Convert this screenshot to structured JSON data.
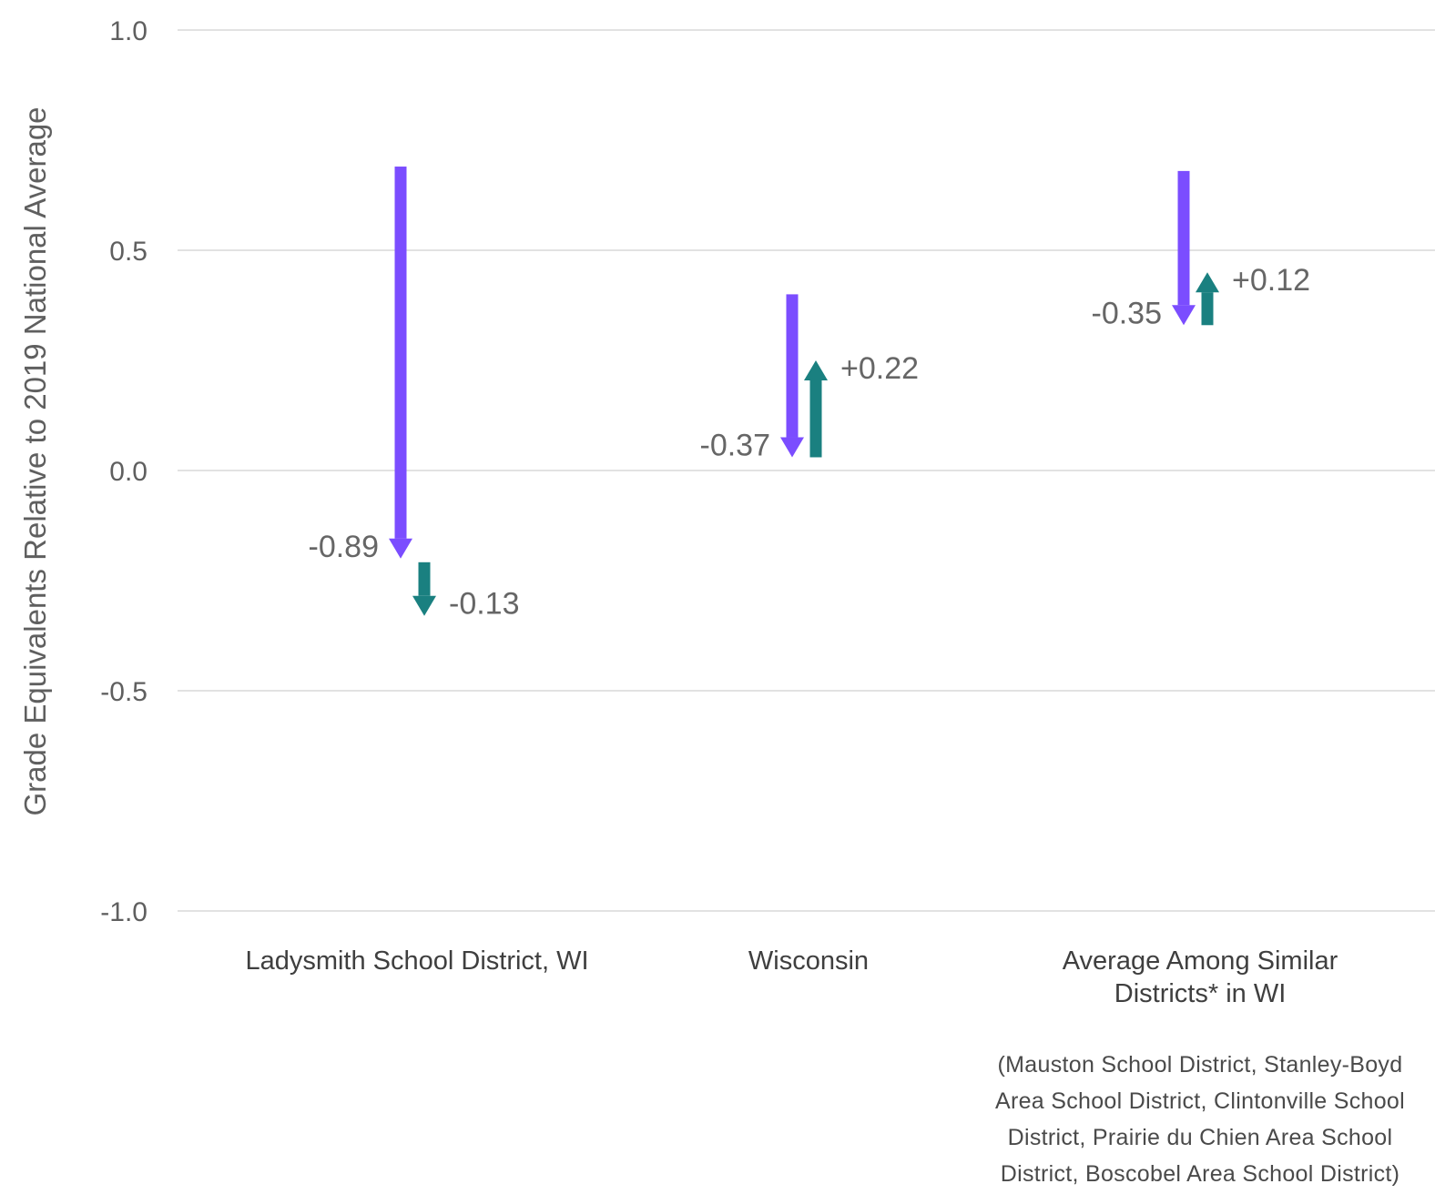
{
  "chart_data": {
    "type": "arrow",
    "ylabel": "Grade Equivalents Relative to 2019 National Average",
    "ylim": [
      -1.0,
      1.0
    ],
    "yticks": [
      1.0,
      0.5,
      0.0,
      -0.5,
      -1.0
    ],
    "ytick_labels": [
      "1.0",
      "0.5",
      "0.0",
      "-0.5",
      "-1.0"
    ],
    "grid": true,
    "colors": {
      "decline": "#7b4dff",
      "change": "#1a8080",
      "grid": "#e2e2e2"
    },
    "categories": [
      {
        "label_lines": [
          "Ladysmith School District, WI"
        ],
        "start": 0.69,
        "mid": -0.2,
        "end": -0.33,
        "drop_label": "-0.89",
        "change_label": "-0.13"
      },
      {
        "label_lines": [
          "Wisconsin"
        ],
        "start": 0.4,
        "mid": 0.03,
        "end": 0.25,
        "drop_label": "-0.37",
        "change_label": "+0.22"
      },
      {
        "label_lines": [
          "Average Among Similar",
          "Districts* in WI"
        ],
        "start": 0.68,
        "mid": 0.33,
        "end": 0.45,
        "drop_label": "-0.35",
        "change_label": "+0.12"
      }
    ],
    "note_lines": [
      "(Mauston School District, Stanley-Boyd",
      "Area School District, Clintonville School",
      "District, Prairie du Chien Area School",
      "District, Boscobel Area School District)"
    ]
  }
}
